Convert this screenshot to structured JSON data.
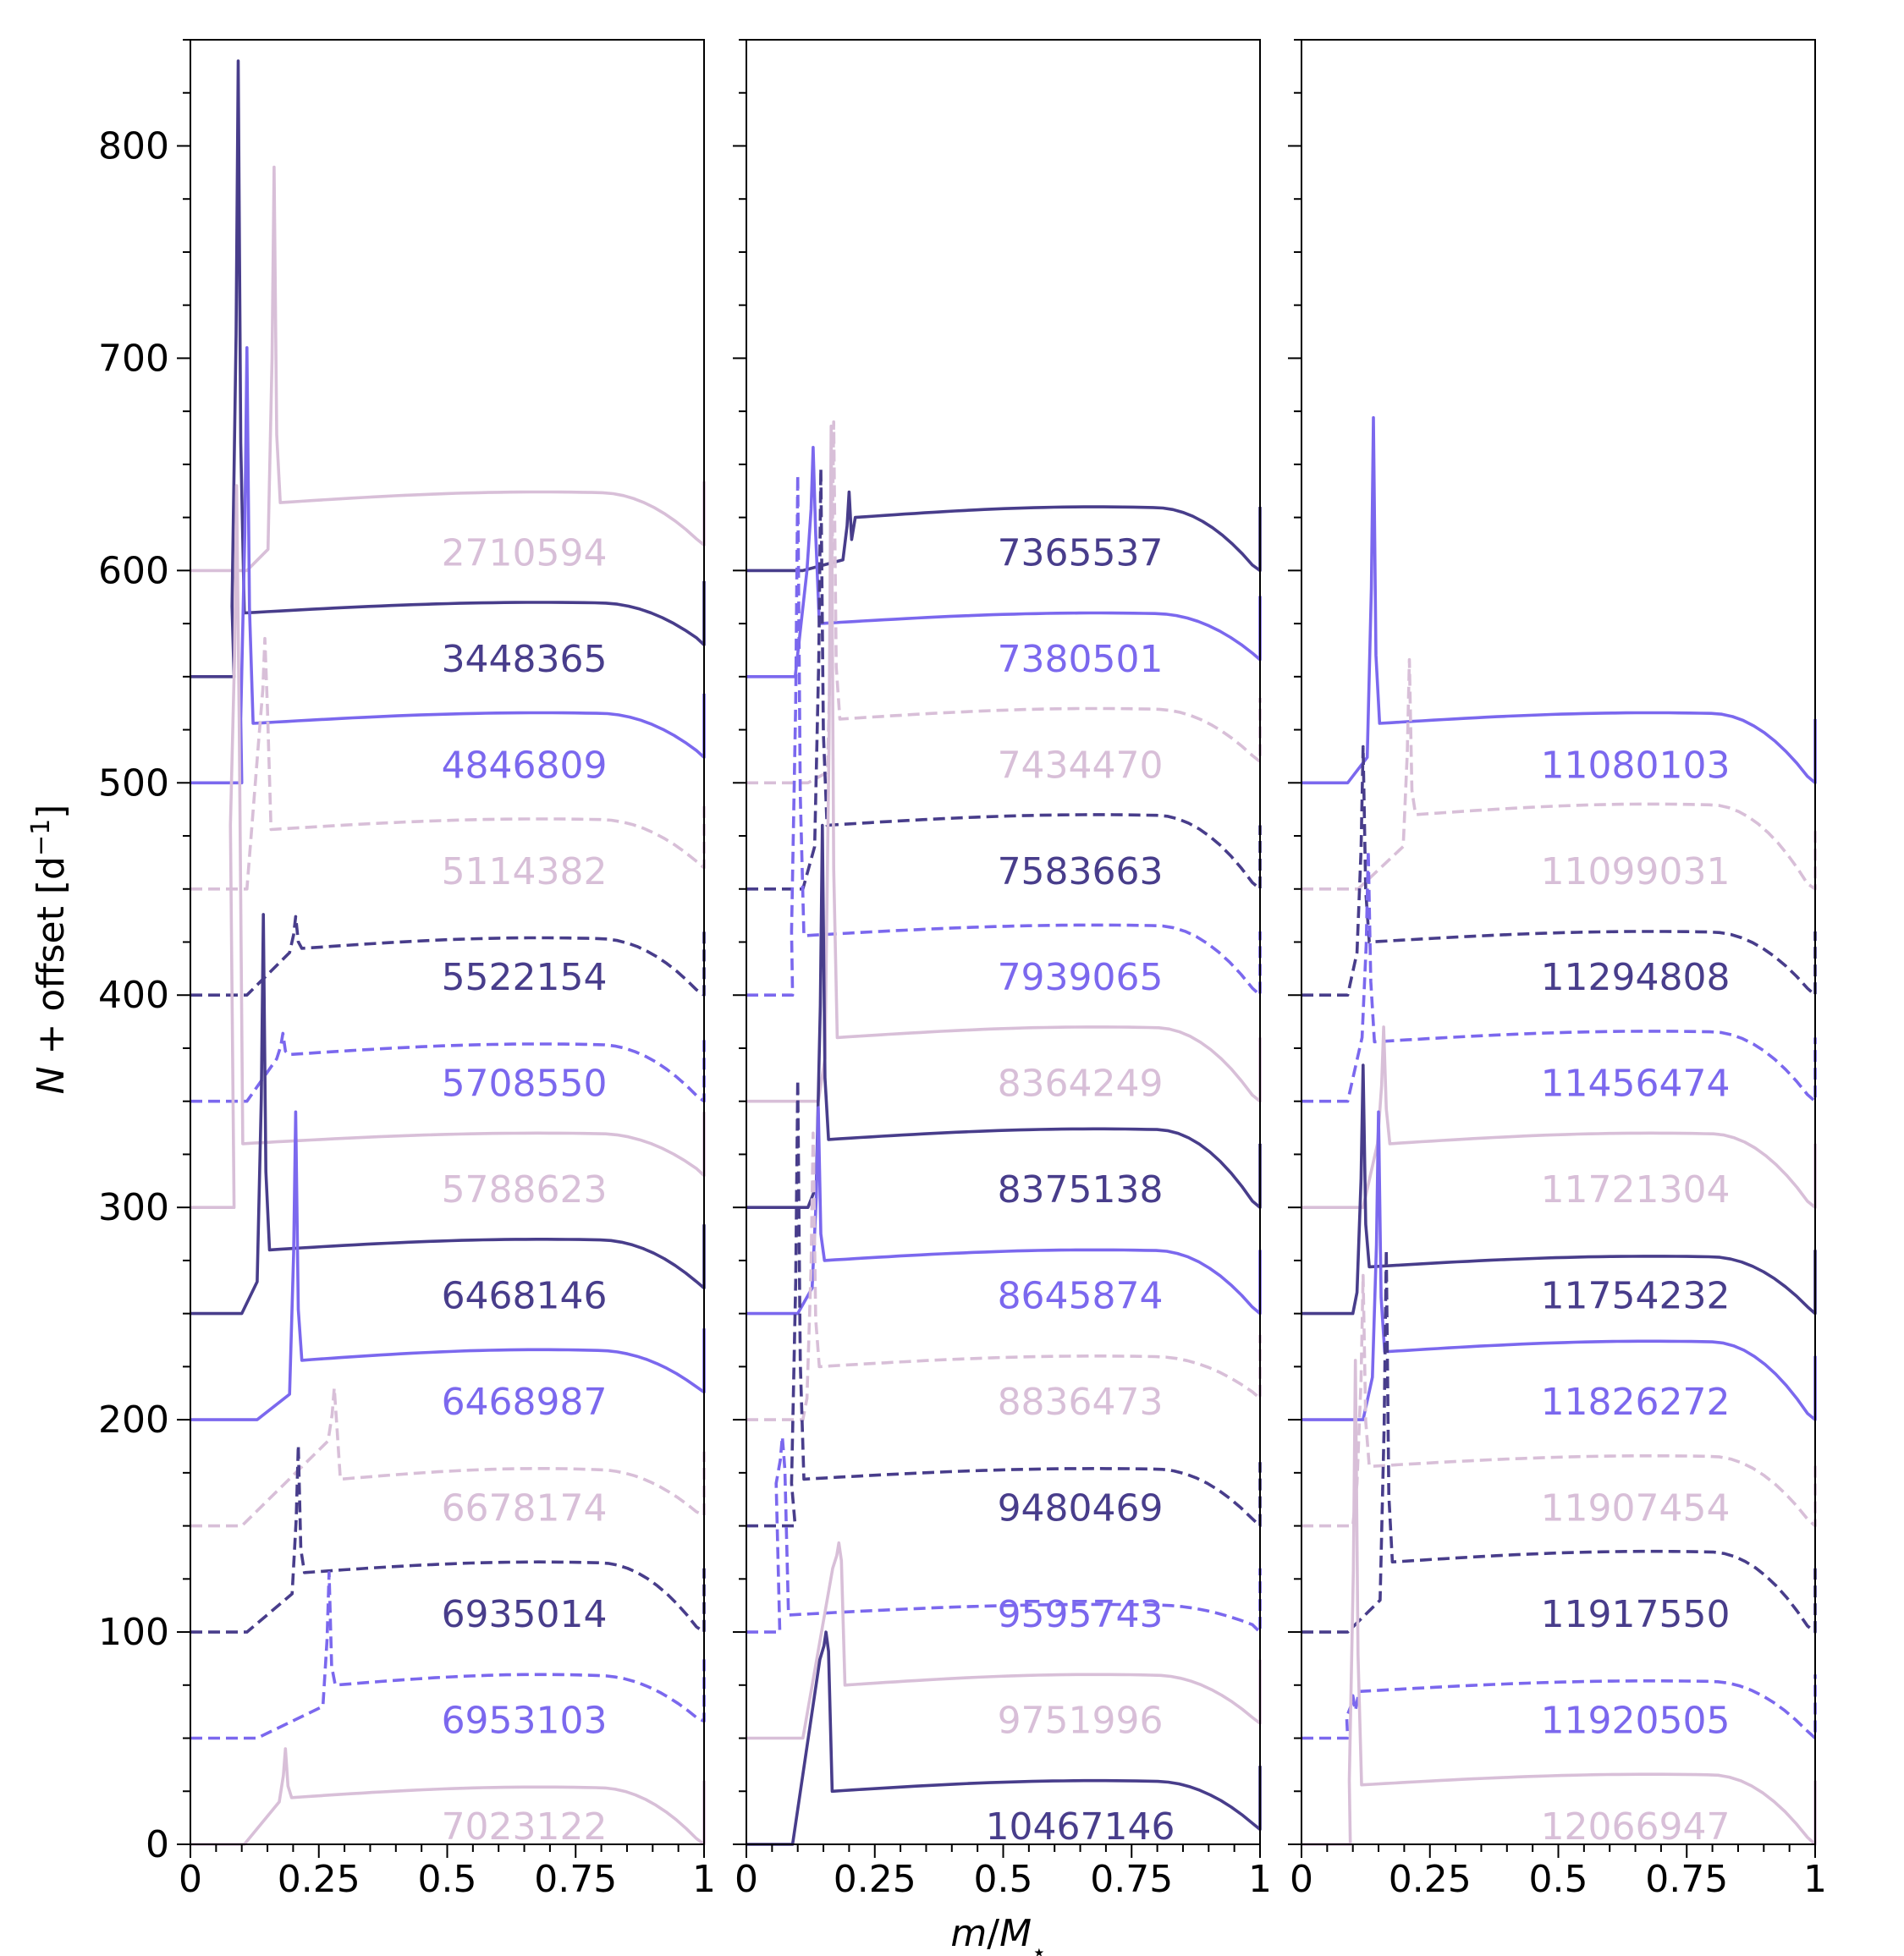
{
  "chart_data": {
    "type": "line",
    "ylabel": "N + offset [d⁻¹]",
    "xlabel": "m/M⋆",
    "ylim": [
      0,
      850
    ],
    "y_ticks": [
      0,
      100,
      200,
      300,
      400,
      500,
      600,
      700,
      800
    ],
    "x_ticks": [
      0,
      0.25,
      0.5,
      0.75,
      1
    ],
    "x_tick_labels": [
      "0",
      "0.25",
      "0.5",
      "0.75",
      "1"
    ],
    "xlim": [
      0,
      1
    ],
    "grid": false,
    "colors": {
      "dark": "#483d8b",
      "medium": "#7b68ee",
      "light": "#d8bfd8"
    },
    "panels": [
      {
        "series": [
          {
            "name": "2710594",
            "color": "light",
            "dash": false,
            "offset": 600,
            "base": 600,
            "x_rise": 0.11,
            "pre_end": 610,
            "spike_x": 0.163,
            "spike_y": 790,
            "plateau": 632,
            "end": 612
          },
          {
            "name": "3448365",
            "color": "dark",
            "dash": false,
            "offset": 550,
            "base": 550,
            "x_rise": 0.085,
            "pre_end": 583,
            "spike_x": 0.093,
            "spike_y": 840,
            "plateau": 580,
            "end": 565
          },
          {
            "name": "4846809",
            "color": "medium",
            "dash": false,
            "offset": 500,
            "base": 500,
            "x_rise": 0.1,
            "pre_end": 530,
            "spike_x": 0.11,
            "spike_y": 705,
            "plateau": 528,
            "end": 512
          },
          {
            "name": "5114382",
            "color": "light",
            "dash": true,
            "offset": 450,
            "base": 450,
            "x_rise": 0.11,
            "pre_end": 520,
            "spike_x": 0.145,
            "spike_y": 568,
            "plateau": 478,
            "end": 460
          },
          {
            "name": "5522154",
            "color": "dark",
            "dash": true,
            "offset": 400,
            "base": 400,
            "x_rise": 0.11,
            "pre_end": 420,
            "spike_x": 0.205,
            "spike_y": 437,
            "plateau": 422,
            "end": 400
          },
          {
            "name": "5708550",
            "color": "medium",
            "dash": true,
            "offset": 350,
            "base": 350,
            "x_rise": 0.11,
            "pre_end": 370,
            "spike_x": 0.18,
            "spike_y": 382,
            "plateau": 372,
            "end": 350
          },
          {
            "name": "5788623",
            "color": "light",
            "dash": false,
            "offset": 300,
            "base": 300,
            "x_rise": 0.085,
            "pre_end": 480,
            "spike_x": 0.09,
            "spike_y": 640,
            "plateau": 330,
            "end": 315
          },
          {
            "name": "6468146",
            "color": "dark",
            "dash": false,
            "offset": 250,
            "base": 250,
            "x_rise": 0.1,
            "pre_end": 265,
            "spike_x": 0.142,
            "spike_y": 438,
            "plateau": 280,
            "end": 262
          },
          {
            "name": "6468987",
            "color": "medium",
            "dash": false,
            "offset": 200,
            "base": 200,
            "x_rise": 0.13,
            "pre_end": 212,
            "spike_x": 0.205,
            "spike_y": 345,
            "plateau": 228,
            "end": 213
          },
          {
            "name": "6678174",
            "color": "light",
            "dash": true,
            "offset": 150,
            "base": 150,
            "x_rise": 0.1,
            "pre_end": 190,
            "spike_x": 0.28,
            "spike_y": 215,
            "plateau": 172,
            "end": 155
          },
          {
            "name": "6935014",
            "color": "dark",
            "dash": true,
            "offset": 100,
            "base": 100,
            "x_rise": 0.11,
            "pre_end": 118,
            "spike_x": 0.21,
            "spike_y": 188,
            "plateau": 128,
            "end": 100
          },
          {
            "name": "6953103",
            "color": "medium",
            "dash": true,
            "offset": 50,
            "base": 50,
            "x_rise": 0.13,
            "pre_end": 65,
            "spike_x": 0.27,
            "spike_y": 128,
            "plateau": 75,
            "end": 58
          },
          {
            "name": "7023122",
            "color": "light",
            "dash": false,
            "offset": 0,
            "base": 0,
            "x_rise": 0.105,
            "pre_end": 20,
            "spike_x": 0.185,
            "spike_y": 45,
            "plateau": 22,
            "end": 0
          }
        ]
      },
      {
        "series": [
          {
            "name": "7365537",
            "color": "dark",
            "dash": false,
            "offset": 600,
            "base": 600,
            "x_rise": 0.11,
            "pre_end": 605,
            "spike_x": 0.2,
            "spike_y": 637,
            "plateau": 625,
            "end": 600
          },
          {
            "name": "7380501",
            "color": "medium",
            "dash": false,
            "offset": 550,
            "base": 550,
            "x_rise": 0.095,
            "pre_end": 600,
            "spike_x": 0.13,
            "spike_y": 658,
            "plateau": 575,
            "end": 558
          },
          {
            "name": "7434470",
            "color": "light",
            "dash": true,
            "offset": 500,
            "base": 500,
            "x_rise": 0.12,
            "pre_end": 505,
            "spike_x": 0.17,
            "spike_y": 670,
            "plateau": 530,
            "end": 510
          },
          {
            "name": "7583663",
            "color": "dark",
            "dash": true,
            "offset": 450,
            "base": 450,
            "x_rise": 0.11,
            "pre_end": 470,
            "spike_x": 0.145,
            "spike_y": 648,
            "plateau": 480,
            "end": 450
          },
          {
            "name": "7939065",
            "color": "medium",
            "dash": true,
            "offset": 400,
            "base": 400,
            "x_rise": 0.09,
            "pre_end": 430,
            "spike_x": 0.1,
            "spike_y": 645,
            "plateau": 428,
            "end": 400
          },
          {
            "name": "8364249",
            "color": "light",
            "dash": false,
            "offset": 350,
            "base": 350,
            "x_rise": 0.14,
            "pre_end": 370,
            "spike_x": 0.165,
            "spike_y": 668,
            "plateau": 380,
            "end": 350
          },
          {
            "name": "8375138",
            "color": "dark",
            "dash": false,
            "offset": 300,
            "base": 300,
            "x_rise": 0.12,
            "pre_end": 310,
            "spike_x": 0.148,
            "spike_y": 480,
            "plateau": 332,
            "end": 300
          },
          {
            "name": "8645874",
            "color": "medium",
            "dash": false,
            "offset": 250,
            "base": 250,
            "x_rise": 0.1,
            "pre_end": 262,
            "spike_x": 0.14,
            "spike_y": 347,
            "plateau": 275,
            "end": 250
          },
          {
            "name": "8836473",
            "color": "light",
            "dash": true,
            "offset": 200,
            "base": 200,
            "x_rise": 0.11,
            "pre_end": 210,
            "spike_x": 0.13,
            "spike_y": 335,
            "plateau": 225,
            "end": 210
          },
          {
            "name": "9480469",
            "color": "dark",
            "dash": true,
            "offset": 150,
            "base": 150,
            "x_rise": 0.095,
            "pre_end": 170,
            "spike_x": 0.1,
            "spike_y": 360,
            "plateau": 172,
            "end": 150
          },
          {
            "name": "9595743",
            "color": "medium",
            "dash": true,
            "offset": 100,
            "base": 100,
            "x_rise": 0.065,
            "pre_end": 170,
            "spike_x": 0.07,
            "spike_y": 192,
            "plateau": 108,
            "end": 100
          },
          {
            "name": "9751996",
            "color": "light",
            "dash": false,
            "offset": 50,
            "base": 50,
            "x_rise": 0.11,
            "pre_end": 130,
            "spike_x": 0.18,
            "spike_y": 142,
            "plateau": 75,
            "end": 57
          },
          {
            "name": "10467146",
            "color": "dark",
            "dash": false,
            "offset": 0,
            "base": 0,
            "x_rise": 0.09,
            "pre_end": 87,
            "spike_x": 0.155,
            "spike_y": 100,
            "plateau": 25,
            "end": 7
          }
        ]
      },
      {
        "series": [
          {
            "name": "11080103",
            "color": "medium",
            "dash": false,
            "offset": 500,
            "base": 500,
            "x_rise": 0.09,
            "pre_end": 512,
            "spike_x": 0.14,
            "spike_y": 672,
            "plateau": 528,
            "end": 500
          },
          {
            "name": "11099031",
            "color": "light",
            "dash": true,
            "offset": 450,
            "base": 450,
            "x_rise": 0.11,
            "pre_end": 470,
            "spike_x": 0.21,
            "spike_y": 558,
            "plateau": 485,
            "end": 450
          },
          {
            "name": "11294808",
            "color": "dark",
            "dash": true,
            "offset": 400,
            "base": 400,
            "x_rise": 0.09,
            "pre_end": 420,
            "spike_x": 0.12,
            "spike_y": 517,
            "plateau": 425,
            "end": 400
          },
          {
            "name": "11456474",
            "color": "medium",
            "dash": true,
            "offset": 350,
            "base": 350,
            "x_rise": 0.09,
            "pre_end": 380,
            "spike_x": 0.13,
            "spike_y": 468,
            "plateau": 378,
            "end": 350
          },
          {
            "name": "11721304",
            "color": "light",
            "dash": false,
            "offset": 300,
            "base": 300,
            "x_rise": 0.12,
            "pre_end": 330,
            "spike_x": 0.16,
            "spike_y": 385,
            "plateau": 330,
            "end": 300
          },
          {
            "name": "11754232",
            "color": "dark",
            "dash": false,
            "offset": 250,
            "base": 250,
            "x_rise": 0.1,
            "pre_end": 260,
            "spike_x": 0.12,
            "spike_y": 367,
            "plateau": 272,
            "end": 250
          },
          {
            "name": "11826272",
            "color": "medium",
            "dash": false,
            "offset": 200,
            "base": 200,
            "x_rise": 0.12,
            "pre_end": 220,
            "spike_x": 0.15,
            "spike_y": 345,
            "plateau": 232,
            "end": 200
          },
          {
            "name": "11907454",
            "color": "light",
            "dash": true,
            "offset": 150,
            "base": 150,
            "x_rise": 0.1,
            "pre_end": 170,
            "spike_x": 0.12,
            "spike_y": 268,
            "plateau": 178,
            "end": 150
          },
          {
            "name": "11917550",
            "color": "dark",
            "dash": true,
            "offset": 100,
            "base": 100,
            "x_rise": 0.09,
            "pre_end": 115,
            "spike_x": 0.165,
            "spike_y": 280,
            "plateau": 133,
            "end": 100
          },
          {
            "name": "11920505",
            "color": "medium",
            "dash": true,
            "offset": 50,
            "base": 50,
            "x_rise": 0.09,
            "pre_end": 60,
            "spike_x": 0.1,
            "spike_y": 70,
            "plateau": 72,
            "end": 50
          },
          {
            "name": "12066947",
            "color": "light",
            "dash": false,
            "offset": 0,
            "base": 0,
            "x_rise": 0.095,
            "pre_end": 30,
            "spike_x": 0.105,
            "spike_y": 228,
            "plateau": 28,
            "end": 0
          }
        ]
      }
    ]
  }
}
